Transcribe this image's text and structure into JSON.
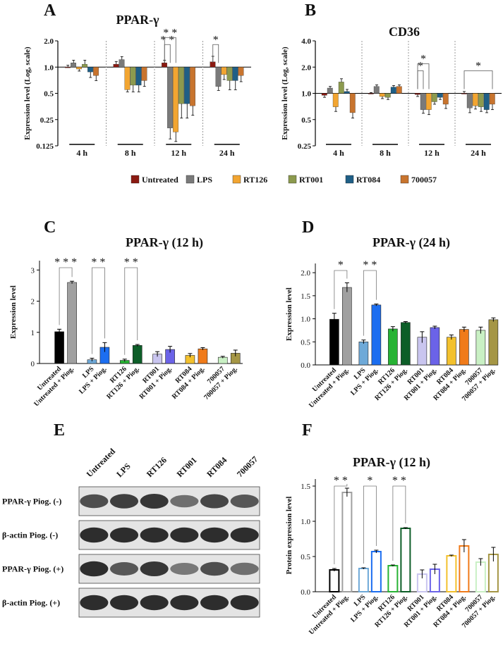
{
  "figure": {
    "panel_letters": [
      "A",
      "B",
      "C",
      "D",
      "E",
      "F"
    ],
    "legend": [
      {
        "name": "Untreated",
        "color": "#8b1a12"
      },
      {
        "name": "LPS",
        "color": "#7a7a7a"
      },
      {
        "name": "RT126",
        "color": "#f2a531"
      },
      {
        "name": "RT001",
        "color": "#8c9a4e"
      },
      {
        "name": "RT084",
        "color": "#1f5f86"
      },
      {
        "name": "700057",
        "color": "#c8742e"
      }
    ]
  },
  "chart_data": [
    {
      "panel": "A",
      "type": "bar",
      "title": "PPAR-γ",
      "ylabel": "Expression level (Log, scale)",
      "scale": "log2",
      "ylim": [
        0.125,
        2.0
      ],
      "yticks": [
        "2.0",
        "1.0",
        "0.5",
        "0.25",
        "0.125"
      ],
      "ytick_values": [
        2.0,
        1.0,
        0.5,
        0.25,
        0.125
      ],
      "groups": [
        "4 h",
        "8 h",
        "12 h",
        "24 h"
      ],
      "series_names": [
        "Untreated",
        "LPS",
        "RT126",
        "RT001",
        "RT084",
        "700057"
      ],
      "values": [
        [
          1.0,
          1.12,
          0.95,
          1.08,
          0.88,
          0.8
        ],
        [
          1.08,
          1.22,
          0.55,
          0.62,
          0.62,
          0.7
        ],
        [
          1.12,
          0.2,
          0.18,
          0.38,
          0.38,
          0.36
        ],
        [
          1.15,
          0.6,
          0.82,
          0.7,
          0.7,
          0.8
        ]
      ],
      "errors": [
        [
          0.05,
          0.08,
          0.05,
          0.12,
          0.12,
          0.1
        ],
        [
          0.08,
          0.1,
          0.03,
          0.1,
          0.1,
          0.1
        ],
        [
          0.08,
          0.05,
          0.04,
          0.12,
          0.12,
          0.08
        ],
        [
          0.18,
          0.06,
          0.1,
          0.15,
          0.15,
          0.12
        ]
      ],
      "annotations": [
        {
          "text": "* *",
          "group": 2,
          "from": 0,
          "to": 1,
          "level": 2
        },
        {
          "text": "* *",
          "group": 2,
          "from": 0,
          "to": 2,
          "level": 3
        },
        {
          "text": "*",
          "group": 3,
          "from": 0,
          "to": 1,
          "level": 2
        }
      ]
    },
    {
      "panel": "B",
      "type": "bar",
      "title": "CD36",
      "ylabel": "Expression level (Log, scale)",
      "scale": "log2",
      "ylim": [
        0.25,
        4.0
      ],
      "yticks": [
        "4.0",
        "2.0",
        "1.0",
        "0.5",
        "0.25"
      ],
      "ytick_values": [
        4.0,
        2.0,
        1.0,
        0.5,
        0.25
      ],
      "groups": [
        "4 h",
        "8 h",
        "12 h",
        "24 h"
      ],
      "series_names": [
        "Untreated",
        "LPS",
        "RT126",
        "RT001",
        "RT084",
        "700057"
      ],
      "values": [
        [
          0.95,
          1.15,
          0.7,
          1.35,
          1.05,
          0.6
        ],
        [
          1.0,
          1.2,
          0.92,
          0.9,
          1.18,
          1.2
        ],
        [
          0.97,
          0.65,
          0.65,
          0.8,
          0.9,
          0.75
        ],
        [
          1.0,
          0.68,
          0.72,
          0.7,
          0.65,
          0.75
        ]
      ],
      "errors": [
        [
          0.05,
          0.05,
          0.08,
          0.12,
          0.06,
          0.08
        ],
        [
          0.02,
          0.05,
          0.05,
          0.05,
          0.05,
          0.05
        ],
        [
          0.05,
          0.06,
          0.08,
          0.05,
          0.05,
          0.08
        ],
        [
          0.05,
          0.08,
          0.06,
          0.08,
          0.05,
          0.1
        ]
      ],
      "annotations": [
        {
          "text": "*",
          "group": 2,
          "from": 0,
          "to": 1,
          "level": 2
        },
        {
          "text": "*",
          "group": 2,
          "from": 0,
          "to": 2,
          "level": 3
        },
        {
          "text": "*",
          "group": 3,
          "from": 0,
          "to": 5,
          "level": 2
        }
      ]
    },
    {
      "panel": "C",
      "type": "bar",
      "title": "PPAR-γ (12 h)",
      "ylabel": "Expression level",
      "ylim": [
        0,
        3.3
      ],
      "yticks": [
        0,
        1,
        2,
        3
      ],
      "categories": [
        "Untreated",
        "Untreated + Piog.",
        "LPS",
        "LPS + Piog.",
        "RT126",
        "RT126 + Piog.",
        "RT001",
        "RT001 + Piog.",
        "RT084",
        "RT084 + Piog.",
        "700057",
        "700057 + Piog."
      ],
      "values": [
        1.02,
        2.6,
        0.12,
        0.52,
        0.1,
        0.58,
        0.3,
        0.45,
        0.26,
        0.47,
        0.2,
        0.33
      ],
      "errors": [
        0.08,
        0.04,
        0.05,
        0.15,
        0.04,
        0.03,
        0.08,
        0.1,
        0.06,
        0.04,
        0.03,
        0.1
      ],
      "colors": [
        "#000000",
        "#a0a0a0",
        "#6ea9d8",
        "#1c6ef0",
        "#27b334",
        "#0d5e28",
        "#c9c5ef",
        "#6b63e8",
        "#f3c12d",
        "#f07b1a",
        "#c9f0c4",
        "#a59645"
      ],
      "annotations": [
        {
          "text": "* * *",
          "from": 0,
          "to": 1
        },
        {
          "text": "* *",
          "from": 2,
          "to": 3
        },
        {
          "text": "* *",
          "from": 4,
          "to": 5
        }
      ]
    },
    {
      "panel": "D",
      "type": "bar",
      "title": "PPAR-γ (24 h)",
      "ylabel": "Expression level",
      "ylim": [
        0,
        2.2
      ],
      "yticks": [
        "0.0",
        "0.5",
        "1.0",
        "1.5",
        "2.0"
      ],
      "ytick_values": [
        0,
        0.5,
        1.0,
        1.5,
        2.0
      ],
      "categories": [
        "Untreated",
        "Untreated + Piog.",
        "LPS",
        "LPS + Piog.",
        "RT126",
        "RT126 + Piog.",
        "RT001",
        "RT001 + Piog.",
        "RT084",
        "RT084 + Piog.",
        "700057",
        "700057 + Piog."
      ],
      "values": [
        0.99,
        1.68,
        0.5,
        1.3,
        0.78,
        0.92,
        0.6,
        0.81,
        0.6,
        0.77,
        0.75,
        0.98
      ],
      "errors": [
        0.13,
        0.1,
        0.04,
        0.02,
        0.05,
        0.02,
        0.12,
        0.03,
        0.05,
        0.05,
        0.07,
        0.04
      ],
      "colors": [
        "#000000",
        "#a0a0a0",
        "#6ea9d8",
        "#1c6ef0",
        "#27b334",
        "#0d5e28",
        "#c9c5ef",
        "#6b63e8",
        "#f3c12d",
        "#f07b1a",
        "#c9f0c4",
        "#a59645"
      ],
      "annotations": [
        {
          "text": "*",
          "from": 0,
          "to": 1
        },
        {
          "text": "* *",
          "from": 2,
          "to": 3
        }
      ]
    },
    {
      "panel": "F",
      "type": "bar",
      "title": "PPAR-γ (12 h)",
      "ylabel": "Protein expression level",
      "style": "outline",
      "ylim": [
        0,
        1.6
      ],
      "yticks": [
        "0.0",
        "0.5",
        "1.0",
        "1.5"
      ],
      "ytick_values": [
        0,
        0.5,
        1.0,
        1.5
      ],
      "categories": [
        "Untreated",
        "Untreated + Piog.",
        "LPS",
        "LPS + Piog.",
        "RT126",
        "RT126 + Piog.",
        "RT001",
        "RT001 + Piog.",
        "RT084",
        "RT084 + Piog.",
        "700057",
        "700057 + Piog."
      ],
      "values": [
        0.31,
        1.41,
        0.33,
        0.57,
        0.37,
        0.9,
        0.25,
        0.32,
        0.51,
        0.65,
        0.42,
        0.53
      ],
      "errors": [
        0.02,
        0.06,
        0.01,
        0.02,
        0.01,
        0.01,
        0.06,
        0.07,
        0.01,
        0.09,
        0.05,
        0.1
      ],
      "colors": [
        "#000000",
        "#a0a0a0",
        "#6ea9d8",
        "#1c6ef0",
        "#27b334",
        "#0d5e28",
        "#c9c5ef",
        "#6b63e8",
        "#f3c12d",
        "#f07b1a",
        "#c9f0c4",
        "#a59645"
      ],
      "annotations": [
        {
          "text": "* *",
          "from": 0,
          "to": 1
        },
        {
          "text": "*",
          "from": 2,
          "to": 3
        },
        {
          "text": "* *",
          "from": 4,
          "to": 5
        }
      ]
    }
  ],
  "western_blot": {
    "panel": "E",
    "lanes": [
      "Untreated",
      "LPS",
      "RT126",
      "RT001",
      "RT084",
      "700057"
    ],
    "rows": [
      {
        "label": "PPAR-γ Piog. (-)",
        "intensity": [
          0.75,
          0.85,
          0.9,
          0.55,
          0.8,
          0.7
        ]
      },
      {
        "label": "β-actin Piog. (-)",
        "intensity": [
          0.95,
          0.95,
          0.95,
          0.95,
          0.95,
          0.95
        ]
      },
      {
        "label": "PPAR-γ Piog. (+)",
        "intensity": [
          0.95,
          0.7,
          0.9,
          0.5,
          0.75,
          0.55
        ]
      },
      {
        "label": "β-actin Piog. (+)",
        "intensity": [
          0.95,
          0.95,
          0.95,
          0.95,
          0.95,
          0.95
        ]
      }
    ]
  }
}
